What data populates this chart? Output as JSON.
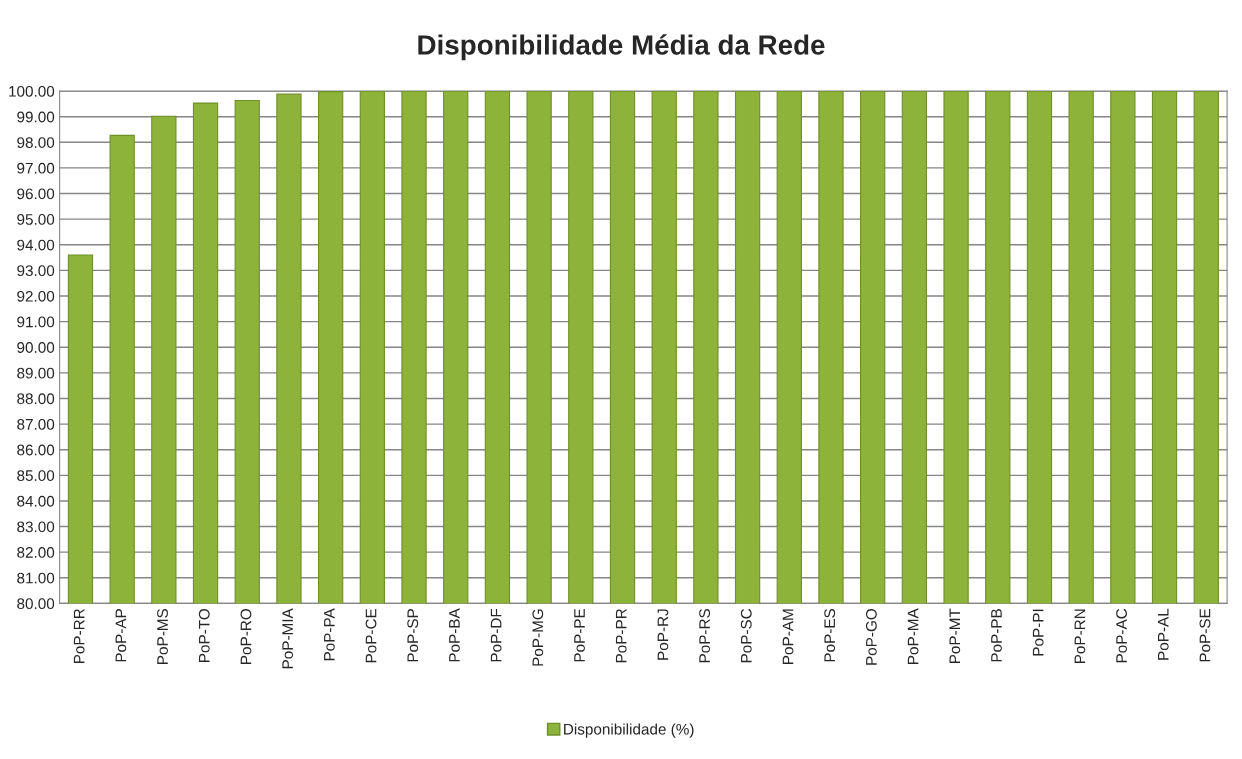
{
  "chart_data": {
    "type": "bar",
    "title": "Disponibilidade Média da Rede",
    "categories": [
      "PoP-RR",
      "PoP-AP",
      "PoP-MS",
      "PoP-TO",
      "PoP-RO",
      "PoP-MIA",
      "PoP-PA",
      "PoP-CE",
      "PoP-SP",
      "PoP-BA",
      "PoP-DF",
      "PoP-MG",
      "PoP-PE",
      "PoP-PR",
      "PoP-RJ",
      "PoP-RS",
      "PoP-SC",
      "PoP-AM",
      "PoP-ES",
      "PoP-GO",
      "PoP-MA",
      "PoP-MT",
      "PoP-PB",
      "PoP-PI",
      "PoP-RN",
      "PoP-AC",
      "PoP-AL",
      "PoP-SE"
    ],
    "series": [
      {
        "name": "Disponibilidade (%)",
        "color": "#8db33a",
        "values": [
          93.6,
          98.27,
          99.02,
          99.53,
          99.63,
          99.88,
          99.98,
          100,
          100,
          100,
          100,
          100,
          100,
          100,
          100,
          100,
          100,
          100,
          100,
          100,
          100,
          100,
          100,
          100,
          100,
          100,
          100,
          100
        ]
      }
    ],
    "ylim": [
      80,
      100
    ],
    "yticks": [
      {
        "value": 80,
        "label": "80.00"
      },
      {
        "value": 81,
        "label": "81.00"
      },
      {
        "value": 82,
        "label": "82.00"
      },
      {
        "value": 83,
        "label": "83.00"
      },
      {
        "value": 84,
        "label": "84.00"
      },
      {
        "value": 85,
        "label": "85.00"
      },
      {
        "value": 86,
        "label": "86.00"
      },
      {
        "value": 87,
        "label": "87.00"
      },
      {
        "value": 88,
        "label": "88.00"
      },
      {
        "value": 89,
        "label": "89.00"
      },
      {
        "value": 90,
        "label": "90.00"
      },
      {
        "value": 91,
        "label": "91.00"
      },
      {
        "value": 92,
        "label": "92.00"
      },
      {
        "value": 93,
        "label": "93.00"
      },
      {
        "value": 94,
        "label": "94.00"
      },
      {
        "value": 95,
        "label": "95.00"
      },
      {
        "value": 96,
        "label": "96.00"
      },
      {
        "value": 97,
        "label": "97.00"
      },
      {
        "value": 98,
        "label": "98.00"
      },
      {
        "value": 99,
        "label": "99.00"
      },
      {
        "value": 100,
        "label": "100.00"
      }
    ],
    "grid": "y",
    "legend": "bottom"
  }
}
